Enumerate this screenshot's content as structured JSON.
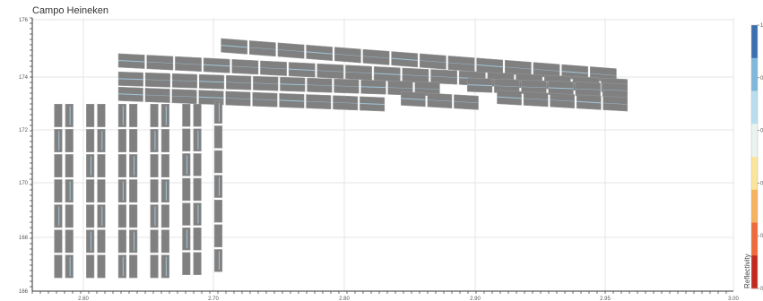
{
  "chart_data": {
    "type": "heatmap",
    "title": "Campo Heineken",
    "xlabel": "",
    "ylabel": "",
    "grid": true,
    "xlim": [
      -10,
      500
    ],
    "ylim": [
      160,
      178
    ],
    "x_ticks": [
      "2.60",
      "2.70",
      "2.80",
      "2.90",
      "2.95",
      "3.00"
    ],
    "y_ticks": [
      "176",
      "174",
      "172",
      "170",
      "168",
      "166"
    ],
    "panel_color": "#808080",
    "highlight_color": "#a9d8f0",
    "colorbar": {
      "label": "Reflectivity",
      "range": [
        0,
        1
      ],
      "ticks": [
        "1",
        "0.8",
        "0.6",
        "0.4",
        "0.2",
        "0"
      ],
      "colors": [
        "#c22a1f",
        "#ef6a3a",
        "#f6b25d",
        "#fbe59a",
        "#e9f3ef",
        "#b9def0",
        "#7fb8db",
        "#3a6fb0"
      ]
    },
    "panel_rows": [
      {
        "x_start": 95,
        "x_end": 455,
        "y_left": 176.2,
        "y_right": 174.2,
        "cols": 14,
        "height": 0.45
      },
      {
        "x_start": 2,
        "x_end": 465,
        "y_left": 175.2,
        "y_right": 173.5,
        "cols": 18,
        "height": 0.45
      },
      {
        "x_start": 2,
        "x_end": 295,
        "y_left": 174.0,
        "y_right": 173.3,
        "cols": 12,
        "height": 0.45
      },
      {
        "x_start": 318,
        "x_end": 465,
        "y_left": 173.6,
        "y_right": 173.2,
        "cols": 6,
        "height": 0.45
      },
      {
        "x_start": 2,
        "x_end": 245,
        "y_left": 173.0,
        "y_right": 172.3,
        "cols": 10,
        "height": 0.45
      },
      {
        "x_start": 258,
        "x_end": 330,
        "y_left": 172.7,
        "y_right": 172.4,
        "cols": 3,
        "height": 0.45
      },
      {
        "x_start": 345,
        "x_end": 465,
        "y_left": 172.8,
        "y_right": 172.3,
        "cols": 5,
        "height": 0.45
      }
    ],
    "panel_columns": [
      {
        "x": -55,
        "width": 7,
        "y_top": 172.4,
        "y_bottom": 160.8,
        "rows": 7
      },
      {
        "x": -45,
        "width": 7,
        "y_top": 172.4,
        "y_bottom": 160.8,
        "rows": 7
      },
      {
        "x": -26,
        "width": 7,
        "y_top": 172.4,
        "y_bottom": 160.8,
        "rows": 7
      },
      {
        "x": -16,
        "width": 7,
        "y_top": 172.4,
        "y_bottom": 160.8,
        "rows": 7
      },
      {
        "x": 3,
        "width": 7,
        "y_top": 172.4,
        "y_bottom": 160.8,
        "rows": 7
      },
      {
        "x": 13,
        "width": 7,
        "y_top": 172.4,
        "y_bottom": 160.8,
        "rows": 7
      },
      {
        "x": 32,
        "width": 7,
        "y_top": 172.4,
        "y_bottom": 160.8,
        "rows": 7
      },
      {
        "x": 42,
        "width": 7,
        "y_top": 172.4,
        "y_bottom": 160.8,
        "rows": 7
      },
      {
        "x": 61,
        "width": 7,
        "y_top": 172.4,
        "y_bottom": 161.0,
        "rows": 7
      },
      {
        "x": 71,
        "width": 7,
        "y_top": 172.4,
        "y_bottom": 161.0,
        "rows": 7
      },
      {
        "x": 90,
        "width": 7,
        "y_top": 172.6,
        "y_bottom": 161.2,
        "rows": 7
      }
    ]
  }
}
